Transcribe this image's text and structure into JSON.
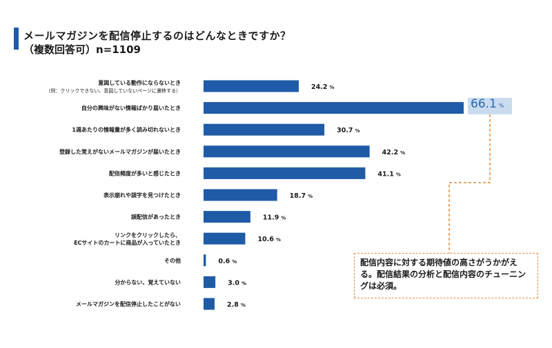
{
  "title": "メールマガジンを配信停止するのはどんなときですか？",
  "subtitle": "（複数回答可）n=1109",
  "highlight": {
    "value": "66.1",
    "unit": "%"
  },
  "note": "配信内容に対する期待値の高さがうかがえる。配信結果の分析と配信内容のチューニングは必須。",
  "colors": {
    "bar": "#1f5ba6",
    "accent": "#1f5ba6",
    "callout": "#e08a3c",
    "highlight": "#c9dbef"
  },
  "chart_data": {
    "type": "bar",
    "orientation": "horizontal",
    "unit": "%",
    "categories": [
      [
        "意図している動作にならないとき",
        "（例：クリックできない、意図していないページに遷移する）"
      ],
      [
        "自分の興味がない情報ばかり届いたとき"
      ],
      [
        "1週あたりの情報量が多く読み切れないとき"
      ],
      [
        "登録した覚えがないメールマガジンが届いたとき"
      ],
      [
        "配信頻度が多いと感じたとき"
      ],
      [
        "表示崩れや誤字を見つけたとき"
      ],
      [
        "誤配信があったとき"
      ],
      [
        "リンクをクリックしたら、",
        "ECサイトのカートに商品が入っていたとき"
      ],
      [
        "その他"
      ],
      [
        "分からない、覚えていない"
      ],
      [
        "メールマガジンを配信停止したことがない"
      ]
    ],
    "values": [
      24.2,
      66.1,
      30.7,
      42.2,
      41.1,
      18.7,
      11.9,
      10.6,
      0.6,
      3.0,
      2.8
    ],
    "value_labels": [
      "24.2",
      "",
      "30.7",
      "42.2",
      "41.1",
      "18.7",
      "11.9",
      "10.6",
      "0.6",
      "3.0",
      "2.8"
    ],
    "xlim": [
      0,
      66.1
    ]
  }
}
